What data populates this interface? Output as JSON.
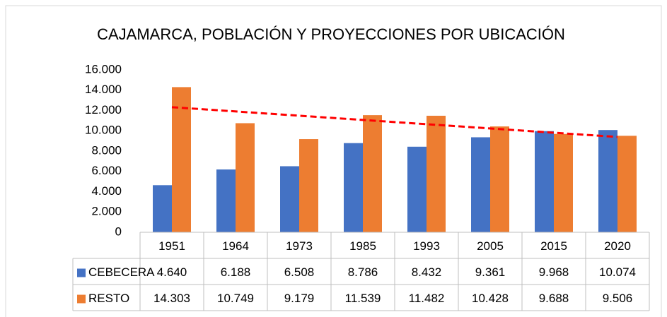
{
  "chart_data": {
    "type": "bar",
    "title": "CAJAMARCA, POBLACIÓN Y PROYECCIONES POR UBICACIÓN",
    "categories": [
      "1951",
      "1964",
      "1973",
      "1985",
      "1993",
      "2005",
      "2015",
      "2020"
    ],
    "series": [
      {
        "name": "CEBECERA",
        "color": "#4472c4",
        "values": [
          4640,
          6188,
          6508,
          8786,
          8432,
          9361,
          9968,
          10074
        ],
        "value_labels": [
          "4.640",
          "6.188",
          "6.508",
          "8.786",
          "8.432",
          "9.361",
          "9.968",
          "10.074"
        ]
      },
      {
        "name": "RESTO",
        "color": "#ed7d31",
        "values": [
          14303,
          10749,
          9179,
          11539,
          11482,
          10428,
          9688,
          9506
        ],
        "value_labels": [
          "14.303",
          "10.749",
          "9.179",
          "11.539",
          "11.482",
          "10.428",
          "9.688",
          "9.506"
        ],
        "trendline": {
          "type": "linear",
          "color": "#ff0000",
          "dashed": true
        }
      }
    ],
    "ylim": [
      0,
      16000
    ],
    "yticks": [
      0,
      {
        "value": 2000,
        "label": "2.000"
      },
      {
        "value": 4000,
        "label": "4.000"
      },
      {
        "value": 6000,
        "label": "6.000"
      },
      {
        "value": 8000,
        "label": "8.000"
      },
      {
        "value": 10000,
        "label": "10.000"
      },
      {
        "value": 12000,
        "label": "12.000"
      },
      {
        "value": 14000,
        "label": "14.000"
      },
      {
        "value": 16000,
        "label": "16.000"
      }
    ],
    "grid": false,
    "data_table": true
  }
}
